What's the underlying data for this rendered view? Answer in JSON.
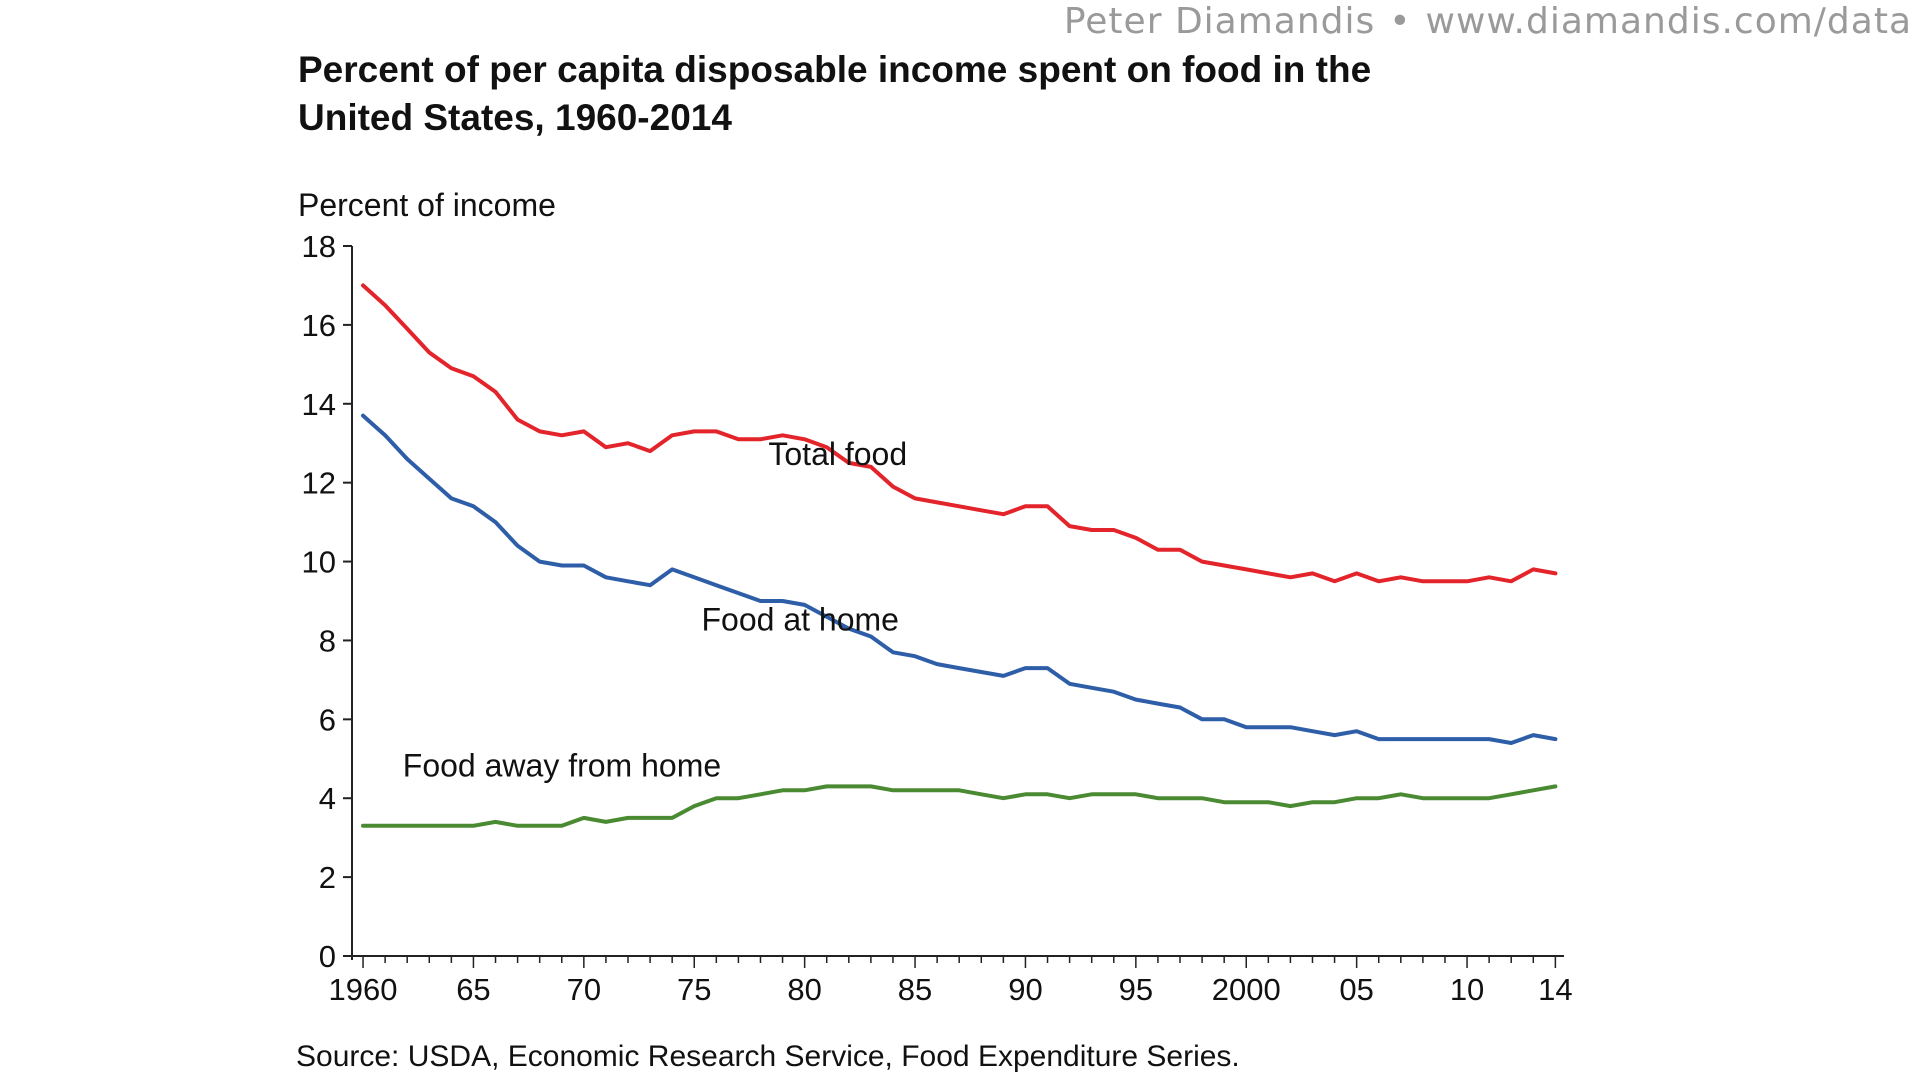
{
  "attribution": {
    "author": "Peter Diamandis",
    "separator": "•",
    "url": "www.diamandis.com/data"
  },
  "source": "Source: USDA, Economic Research Service, Food Expenditure Series.",
  "colors": {
    "total": "#e3242b",
    "home": "#2f5ea8",
    "away": "#4a8a32",
    "axis": "#222222"
  },
  "chart_data": {
    "type": "line",
    "title": "Percent of per capita disposable income spent on food in the United States, 1960-2014",
    "title_lines": [
      "Percent of per capita disposable income spent on food in the",
      "United States, 1960-2014"
    ],
    "ylabel": "Percent of income",
    "xlabel": "",
    "xlim": [
      1959.5,
      2014.3
    ],
    "ylim": [
      0,
      18
    ],
    "y_ticks": [
      0,
      2,
      4,
      6,
      8,
      10,
      12,
      14,
      16,
      18
    ],
    "x_ticks": [
      {
        "value": 1960,
        "label": "1960"
      },
      {
        "value": 1965,
        "label": "65"
      },
      {
        "value": 1970,
        "label": "70"
      },
      {
        "value": 1975,
        "label": "75"
      },
      {
        "value": 1980,
        "label": "80"
      },
      {
        "value": 1985,
        "label": "85"
      },
      {
        "value": 1990,
        "label": "90"
      },
      {
        "value": 1995,
        "label": "95"
      },
      {
        "value": 2000,
        "label": "2000"
      },
      {
        "value": 2005,
        "label": "05"
      },
      {
        "value": 2010,
        "label": "10"
      },
      {
        "value": 2014,
        "label": "14"
      }
    ],
    "grid": false,
    "x": [
      1960,
      1961,
      1962,
      1963,
      1964,
      1965,
      1966,
      1967,
      1968,
      1969,
      1970,
      1971,
      1972,
      1973,
      1974,
      1975,
      1976,
      1977,
      1978,
      1979,
      1980,
      1981,
      1982,
      1983,
      1984,
      1985,
      1986,
      1987,
      1988,
      1989,
      1990,
      1991,
      1992,
      1993,
      1994,
      1995,
      1996,
      1997,
      1998,
      1999,
      2000,
      2001,
      2002,
      2003,
      2004,
      2005,
      2006,
      2007,
      2008,
      2009,
      2010,
      2011,
      2012,
      2013,
      2014
    ],
    "series": [
      {
        "name": "Total food",
        "key": "total",
        "values": [
          17.0,
          16.5,
          15.9,
          15.3,
          14.9,
          14.7,
          14.3,
          13.6,
          13.3,
          13.2,
          13.3,
          12.9,
          13.0,
          12.8,
          13.2,
          13.3,
          13.3,
          13.1,
          13.1,
          13.2,
          13.1,
          12.9,
          12.5,
          12.4,
          11.9,
          11.6,
          11.5,
          11.4,
          11.3,
          11.2,
          11.4,
          11.4,
          10.9,
          10.8,
          10.8,
          10.6,
          10.3,
          10.3,
          10.0,
          9.9,
          9.8,
          9.7,
          9.6,
          9.7,
          9.5,
          9.7,
          9.5,
          9.6,
          9.5,
          9.5,
          9.5,
          9.6,
          9.5,
          9.8,
          9.7
        ],
        "label_anchor": [
          1981.5,
          12.45
        ]
      },
      {
        "name": "Food at home",
        "key": "home",
        "values": [
          13.7,
          13.2,
          12.6,
          12.1,
          11.6,
          11.4,
          11.0,
          10.4,
          10.0,
          9.9,
          9.9,
          9.6,
          9.5,
          9.4,
          9.8,
          9.6,
          9.4,
          9.2,
          9.0,
          9.0,
          8.9,
          8.6,
          8.3,
          8.1,
          7.7,
          7.6,
          7.4,
          7.3,
          7.2,
          7.1,
          7.3,
          7.3,
          6.9,
          6.8,
          6.7,
          6.5,
          6.4,
          6.3,
          6.0,
          6.0,
          5.8,
          5.8,
          5.8,
          5.7,
          5.6,
          5.7,
          5.5,
          5.5,
          5.5,
          5.5,
          5.5,
          5.5,
          5.4,
          5.6,
          5.5
        ],
        "label_anchor": [
          1979.8,
          8.25
        ]
      },
      {
        "name": "Food away from home",
        "key": "away",
        "values": [
          3.3,
          3.3,
          3.3,
          3.3,
          3.3,
          3.3,
          3.4,
          3.3,
          3.3,
          3.3,
          3.5,
          3.4,
          3.5,
          3.5,
          3.5,
          3.8,
          4.0,
          4.0,
          4.1,
          4.2,
          4.2,
          4.3,
          4.3,
          4.3,
          4.2,
          4.2,
          4.2,
          4.2,
          4.1,
          4.0,
          4.1,
          4.1,
          4.0,
          4.1,
          4.1,
          4.1,
          4.0,
          4.0,
          4.0,
          3.9,
          3.9,
          3.9,
          3.8,
          3.9,
          3.9,
          4.0,
          4.0,
          4.1,
          4.0,
          4.0,
          4.0,
          4.0,
          4.1,
          4.2,
          4.3
        ],
        "label_anchor": [
          1961.8,
          4.55
        ]
      }
    ]
  }
}
